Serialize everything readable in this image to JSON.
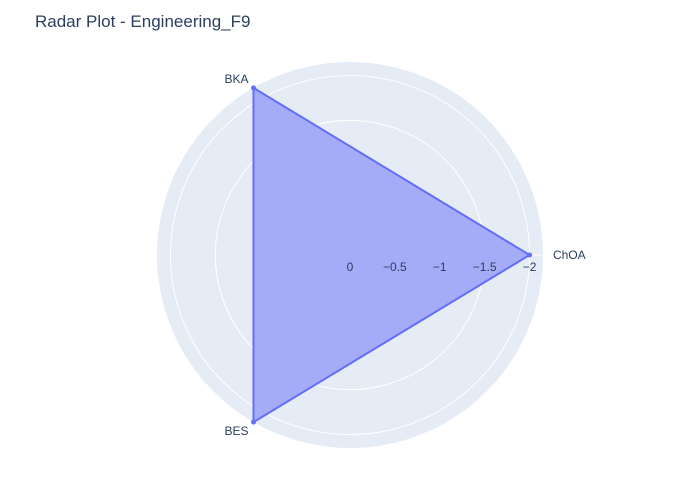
{
  "chart_data": {
    "type": "radar",
    "title": "Radar Plot - Engineering_F9",
    "categories": [
      "ChOA",
      "BKA",
      "BES"
    ],
    "series": [
      {
        "values": [
          -2.0,
          -2.15,
          -2.15
        ],
        "color": "#636efa",
        "fill_color": "#a4acf7"
      }
    ],
    "radial_axis": {
      "range": [
        0,
        -2.15
      ],
      "tick_values": [
        0,
        -0.5,
        -1,
        -1.5,
        -2
      ],
      "tick_labels": [
        "0",
        "−0.5",
        "−1",
        "−1.5",
        "−2"
      ]
    },
    "polar_background": "#e5ecf6",
    "grid_color": "#ffffff",
    "legend": "none"
  }
}
